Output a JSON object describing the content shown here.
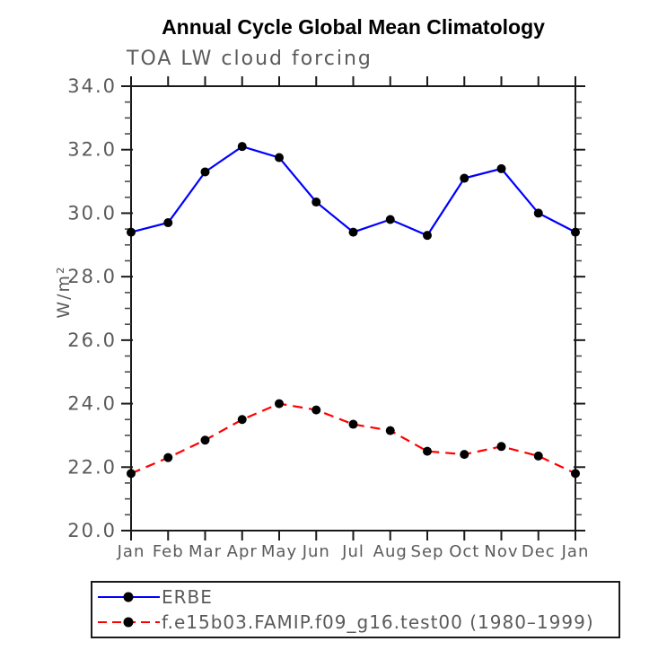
{
  "figure": {
    "background": "#ffffff"
  },
  "chart_data": {
    "type": "line",
    "title": "Annual Cycle Global Mean Climatology",
    "subtitle": "TOA LW cloud forcing",
    "ylabel": "W/m²",
    "xlabel": "",
    "x_categories": [
      "Jan",
      "Feb",
      "Mar",
      "Apr",
      "May",
      "Jun",
      "Jul",
      "Aug",
      "Sep",
      "Oct",
      "Nov",
      "Dec",
      "Jan"
    ],
    "ylim": [
      20.0,
      34.0
    ],
    "ytick_interval": 2.0,
    "yminor_interval": 0.5,
    "ytick_labels": [
      "34.0",
      "32.0",
      "30.0",
      "28.0",
      "26.0",
      "24.0",
      "22.0",
      "20.0"
    ],
    "grid": false,
    "legend_position": "bottom-left",
    "axis_color": "#1a1a1a",
    "label_color": "#5a5a5a",
    "series": [
      {
        "name": "ERBE",
        "color": "#0000ff",
        "line_style": "solid",
        "marker": "filled-circle",
        "marker_color": "#000000",
        "values": [
          29.4,
          29.7,
          31.3,
          32.1,
          31.75,
          30.35,
          29.4,
          29.8,
          29.3,
          31.1,
          31.4,
          30.0,
          29.4
        ]
      },
      {
        "name": "f.e15b03.FAMIP.f09_g16.test00 (1980–1999)",
        "color": "#ff0000",
        "line_style": "dashed",
        "marker": "filled-circle",
        "marker_color": "#000000",
        "values": [
          21.8,
          22.3,
          22.85,
          23.5,
          24.0,
          23.8,
          23.35,
          23.15,
          22.5,
          22.4,
          22.65,
          22.35,
          21.8
        ]
      }
    ]
  }
}
